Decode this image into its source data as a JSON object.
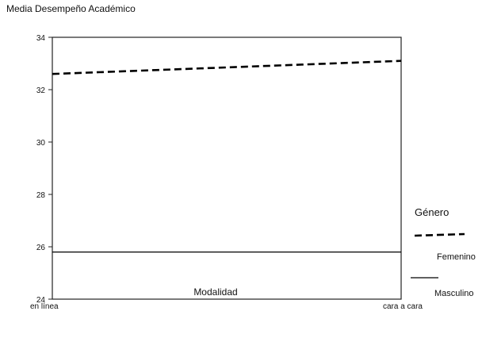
{
  "chart_data": {
    "type": "line",
    "title": "",
    "ylabel": "Media Desempeño Académico",
    "xlabel": "Modalidad",
    "categories": [
      "en línea",
      "cara a cara"
    ],
    "ylim": [
      24,
      34
    ],
    "yticks": [
      24,
      26,
      28,
      30,
      32,
      34
    ],
    "grid": false,
    "legend_title": "Género",
    "legend_position": "right",
    "series": [
      {
        "name": "Femenino",
        "values": [
          32.6,
          33.1
        ],
        "line_style": "dashed",
        "color": "#000000"
      },
      {
        "name": "Masculino",
        "values": [
          25.8,
          25.8
        ],
        "line_style": "solid",
        "color": "#000000"
      }
    ]
  }
}
